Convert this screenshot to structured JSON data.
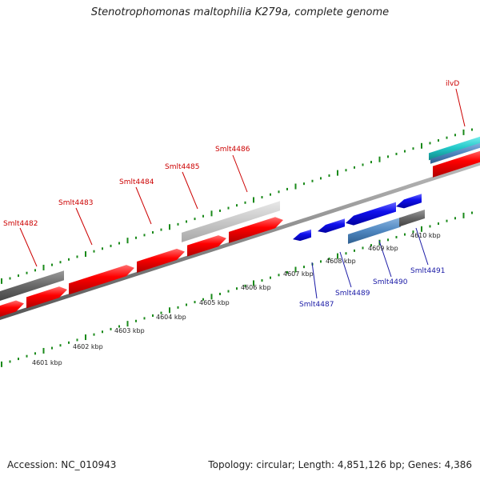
{
  "title": "Stenotrophomonas maltophilia K279a, complete genome",
  "footer": {
    "accession": "Accession: NC_010943",
    "summary": "Topology: circular; Length: 4,851,126 bp; Genes: 4,386"
  },
  "colors": {
    "forward_gene": "#ff0000",
    "reverse_gene": "#0000ee",
    "forward_label": "#cc0000",
    "reverse_label": "#1a1aa6",
    "tick": "#1a8a1a",
    "backbone": "#888888",
    "pseudo_gray": "#666666",
    "light_gray": "#c8c8c8",
    "steel_blue": "#4f87c0",
    "cyan": "#22c8c8"
  },
  "kbp_labels": [
    "4601 kbp",
    "4602 kbp",
    "4603 kbp",
    "4604 kbp",
    "4605 kbp",
    "4606 kbp",
    "4607 kbp",
    "4608 kbp",
    "4609 kbp",
    "4610 kbp"
  ],
  "forward_genes": [
    "Smlt4482",
    "Smlt4483",
    "Smlt4484",
    "Smlt4485",
    "Smlt4486",
    "ilvD"
  ],
  "reverse_genes": [
    "Smlt4487",
    "Smlt4489",
    "Smlt4490",
    "Smlt4491"
  ]
}
